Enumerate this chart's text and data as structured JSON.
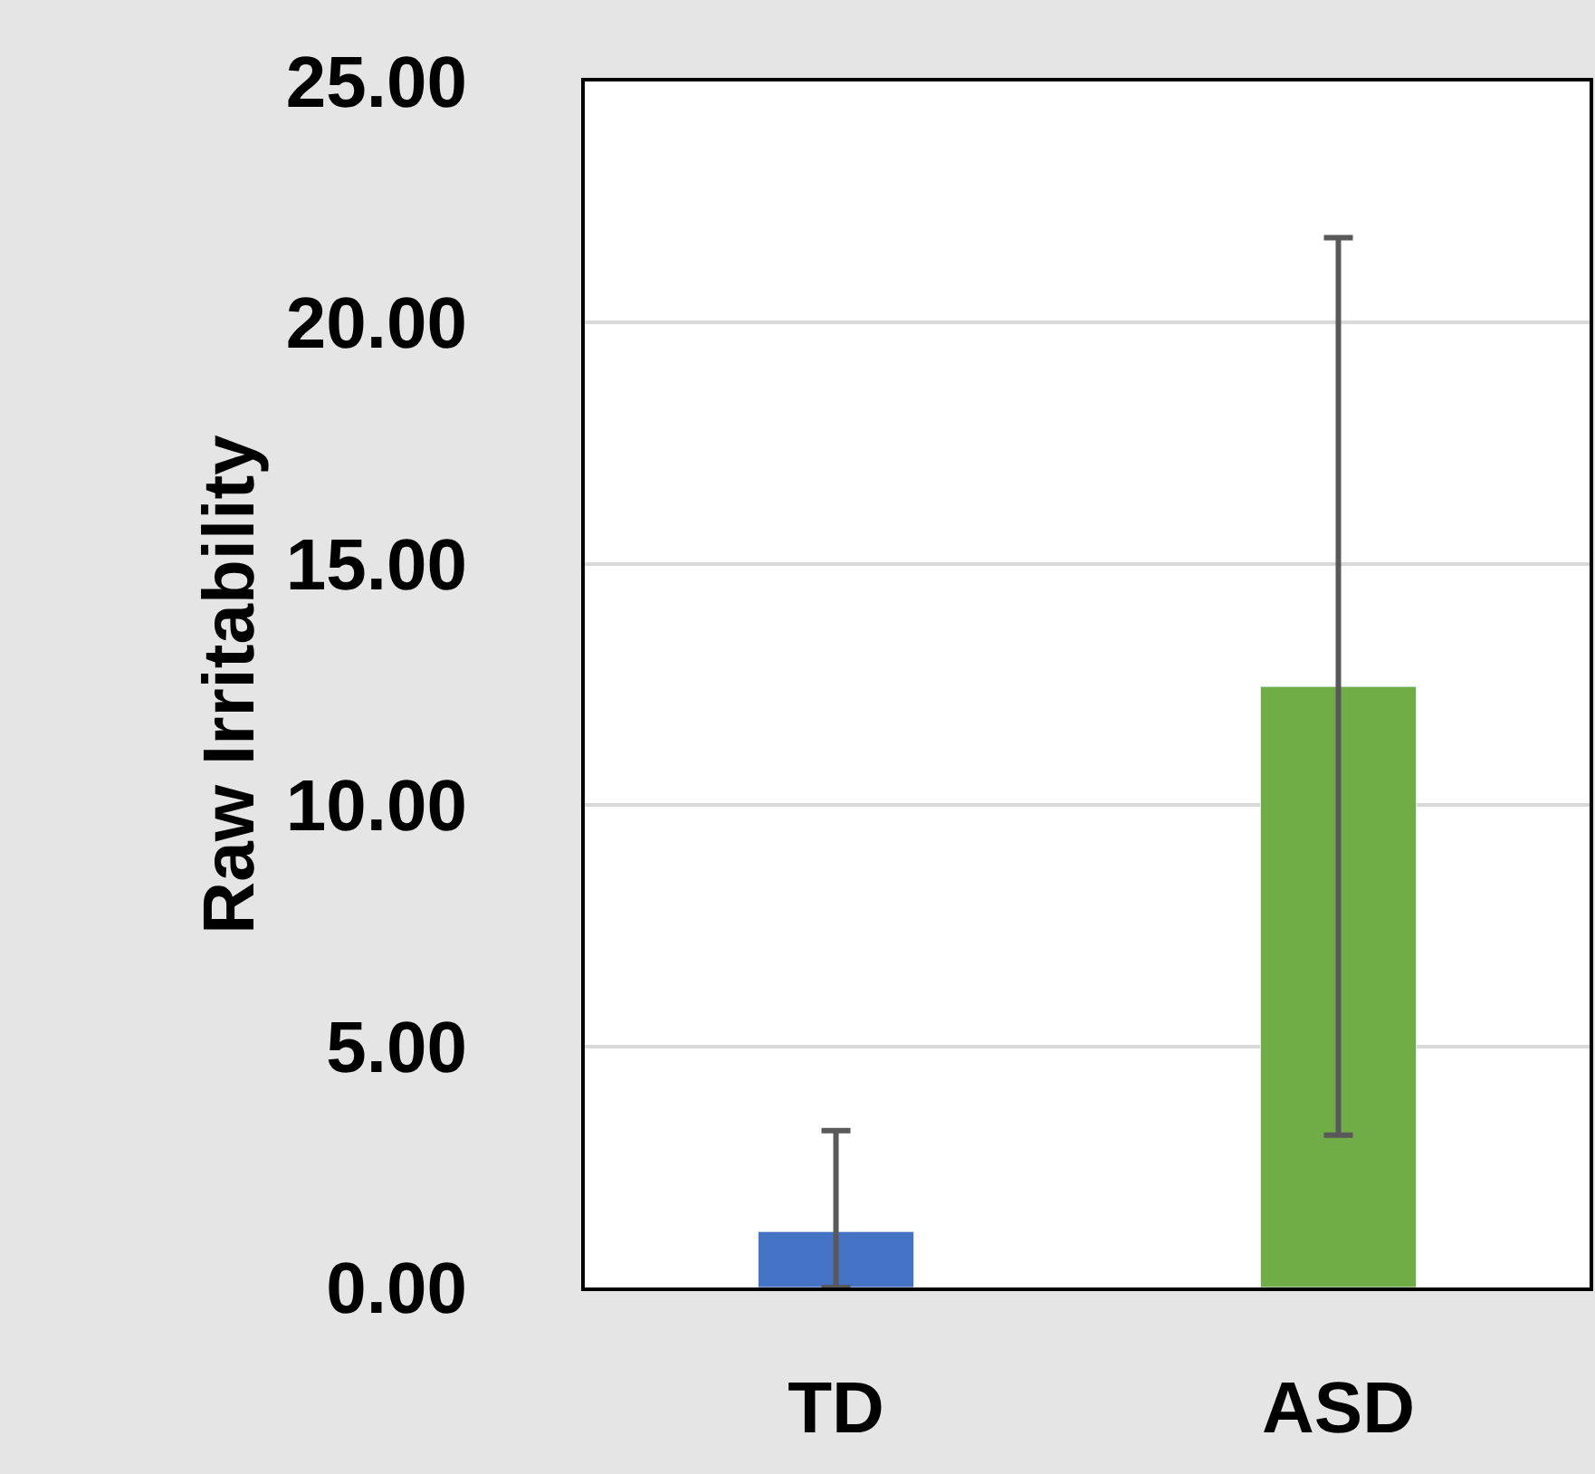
{
  "chart_data": {
    "type": "bar",
    "ylabel": "Raw Irritability",
    "categories": [
      "TD",
      "ASD"
    ],
    "values": [
      1.16,
      12.46
    ],
    "colors": [
      "#4472c4",
      "#70ad47"
    ],
    "errors": [
      [
        0,
        3.25
      ],
      9.3
    ],
    "ylim": [
      0,
      25
    ],
    "yticks": [
      {
        "value": 0,
        "label": "0.00"
      },
      {
        "value": 5,
        "label": "5.00"
      },
      {
        "value": 10,
        "label": "10.00"
      },
      {
        "value": 15,
        "label": "15.00"
      },
      {
        "value": 20,
        "label": "20.00"
      },
      {
        "value": 25,
        "label": "25.00"
      }
    ],
    "grid": "y",
    "legend": false
  }
}
